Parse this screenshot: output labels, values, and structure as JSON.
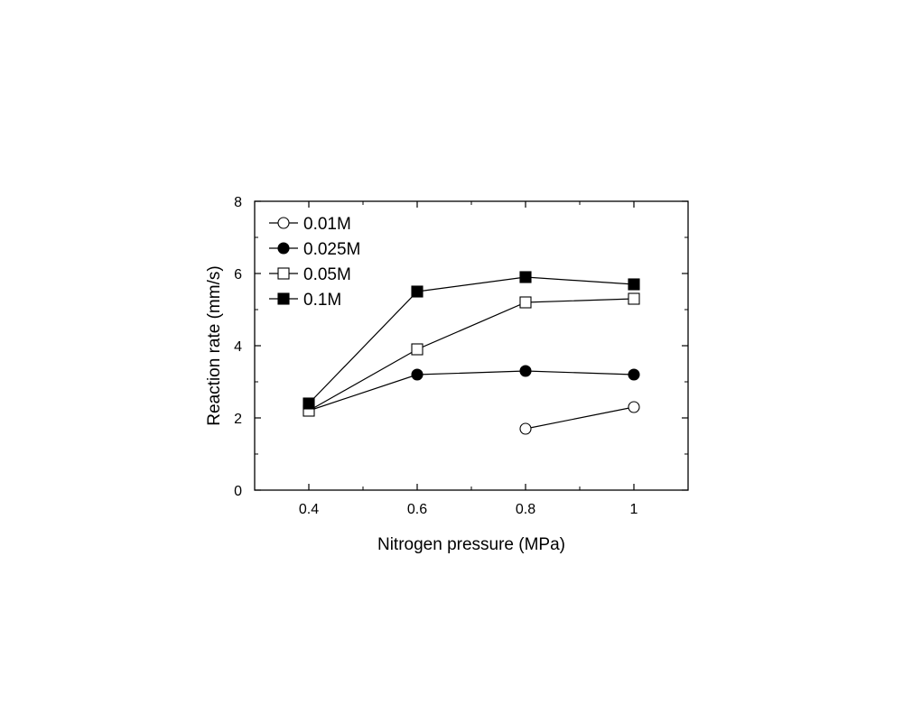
{
  "chart_data": {
    "type": "line",
    "title": "",
    "xlabel": "Nitrogen pressure (MPa)",
    "ylabel": "Reaction rate (mm/s)",
    "xlim": [
      0.3,
      1.1
    ],
    "ylim": [
      0,
      8
    ],
    "x_ticks": [
      0.4,
      0.6,
      0.8,
      1
    ],
    "x_tick_labels": [
      "0.4",
      "0.6",
      "0.8",
      "1"
    ],
    "x_minor_ticks": [
      0.5,
      0.7,
      0.9
    ],
    "y_ticks": [
      0,
      2,
      4,
      6,
      8
    ],
    "y_tick_labels": [
      "0",
      "2",
      "4",
      "6",
      "8"
    ],
    "y_minor_ticks": [
      1,
      3,
      5,
      7
    ],
    "grid": false,
    "legend_position": "top-left",
    "series": [
      {
        "name": "0.01M",
        "marker": "circle-open",
        "color": "#000000",
        "points": [
          {
            "x": 0.8,
            "y": 1.7
          },
          {
            "x": 1.0,
            "y": 2.3
          }
        ]
      },
      {
        "name": "0.025M",
        "marker": "circle-filled",
        "color": "#000000",
        "points": [
          {
            "x": 0.4,
            "y": 2.2
          },
          {
            "x": 0.6,
            "y": 3.2
          },
          {
            "x": 0.8,
            "y": 3.3
          },
          {
            "x": 1.0,
            "y": 3.2
          }
        ]
      },
      {
        "name": "0.05M",
        "marker": "square-open",
        "color": "#000000",
        "points": [
          {
            "x": 0.4,
            "y": 2.2
          },
          {
            "x": 0.6,
            "y": 3.9
          },
          {
            "x": 0.8,
            "y": 5.2
          },
          {
            "x": 1.0,
            "y": 5.3
          }
        ]
      },
      {
        "name": "0.1M",
        "marker": "square-filled",
        "color": "#000000",
        "points": [
          {
            "x": 0.4,
            "y": 2.4
          },
          {
            "x": 0.6,
            "y": 5.5
          },
          {
            "x": 0.8,
            "y": 5.9
          },
          {
            "x": 1.0,
            "y": 5.7
          }
        ]
      }
    ]
  }
}
